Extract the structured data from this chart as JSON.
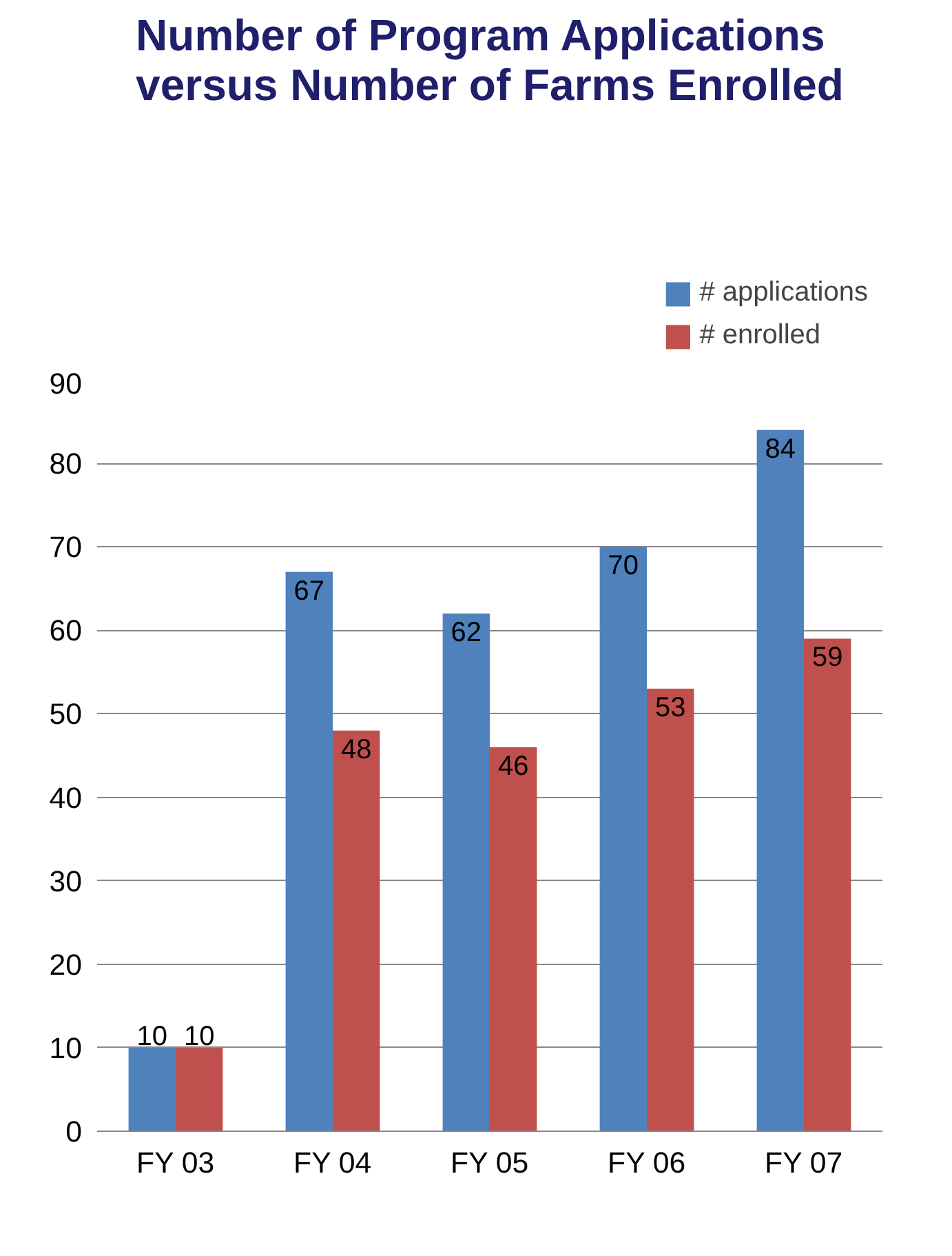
{
  "chart_data": {
    "type": "bar",
    "title": "Number of Program Applications\nversus Number of Farms Enrolled",
    "categories": [
      "FY 03",
      "FY 04",
      "FY 05",
      "FY 06",
      "FY 07"
    ],
    "series": [
      {
        "name": "# applications",
        "color": "#4f81bd",
        "values": [
          10,
          67,
          62,
          70,
          84
        ]
      },
      {
        "name": "# enrolled",
        "color": "#c0504d",
        "values": [
          10,
          48,
          46,
          53,
          59
        ]
      }
    ],
    "ylim": [
      0,
      90
    ],
    "yticks": [
      0,
      10,
      20,
      30,
      40,
      50,
      60,
      70,
      80,
      90
    ],
    "grid": "y",
    "legend": "top right",
    "data_labels": true
  }
}
